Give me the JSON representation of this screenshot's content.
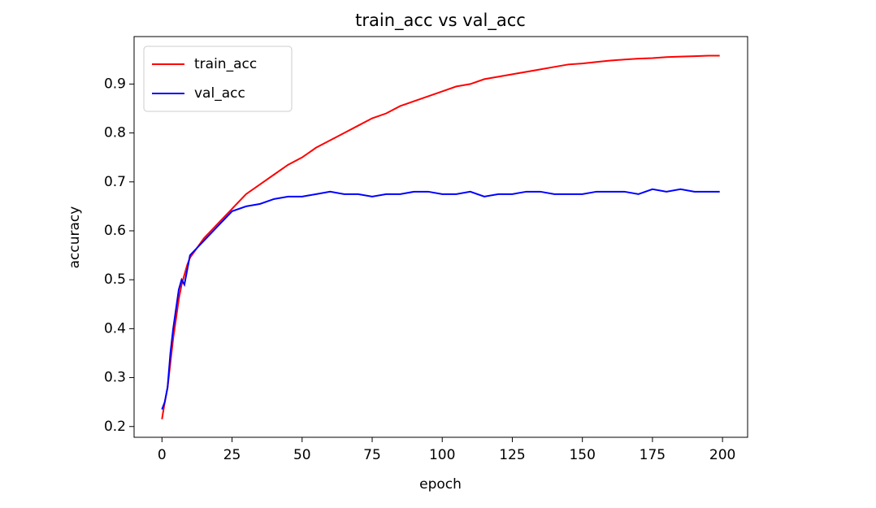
{
  "chart_data": {
    "type": "line",
    "title": "train_acc vs val_acc",
    "x_label": "epoch",
    "y_label": "accuracy",
    "x": [
      0,
      1,
      2,
      3,
      4,
      5,
      6,
      7,
      8,
      9,
      10,
      15,
      20,
      25,
      30,
      35,
      40,
      45,
      50,
      55,
      60,
      65,
      70,
      75,
      80,
      85,
      90,
      95,
      100,
      105,
      110,
      115,
      120,
      125,
      130,
      135,
      140,
      145,
      150,
      155,
      160,
      165,
      170,
      175,
      180,
      185,
      190,
      195,
      199
    ],
    "series": [
      {
        "name": "train_acc",
        "color": "#ff0000",
        "values": [
          0.215,
          0.25,
          0.28,
          0.33,
          0.38,
          0.42,
          0.46,
          0.49,
          0.51,
          0.53,
          0.545,
          0.585,
          0.615,
          0.645,
          0.675,
          0.695,
          0.715,
          0.735,
          0.75,
          0.77,
          0.785,
          0.8,
          0.815,
          0.83,
          0.84,
          0.855,
          0.865,
          0.875,
          0.885,
          0.895,
          0.9,
          0.91,
          0.915,
          0.92,
          0.925,
          0.93,
          0.935,
          0.94,
          0.942,
          0.945,
          0.948,
          0.95,
          0.952,
          0.953,
          0.955,
          0.956,
          0.957,
          0.958,
          0.958
        ]
      },
      {
        "name": "val_acc",
        "color": "#0000ff",
        "values": [
          0.235,
          0.25,
          0.28,
          0.35,
          0.4,
          0.44,
          0.48,
          0.5,
          0.49,
          0.52,
          0.55,
          0.58,
          0.61,
          0.64,
          0.65,
          0.655,
          0.665,
          0.67,
          0.67,
          0.675,
          0.68,
          0.675,
          0.675,
          0.67,
          0.675,
          0.675,
          0.68,
          0.68,
          0.675,
          0.675,
          0.68,
          0.67,
          0.675,
          0.675,
          0.68,
          0.68,
          0.675,
          0.675,
          0.675,
          0.68,
          0.68,
          0.68,
          0.675,
          0.685,
          0.68,
          0.685,
          0.68,
          0.68,
          0.68
        ]
      }
    ],
    "xlim": [
      -9.95,
      208.95
    ],
    "xticks": [
      0,
      25,
      50,
      75,
      100,
      125,
      150,
      175,
      200
    ],
    "ylim": [
      0.178,
      0.997
    ],
    "yticks": [
      0.2,
      0.3,
      0.4,
      0.5,
      0.6,
      0.7,
      0.8,
      0.9
    ],
    "legend": "upper left",
    "grid": false
  }
}
